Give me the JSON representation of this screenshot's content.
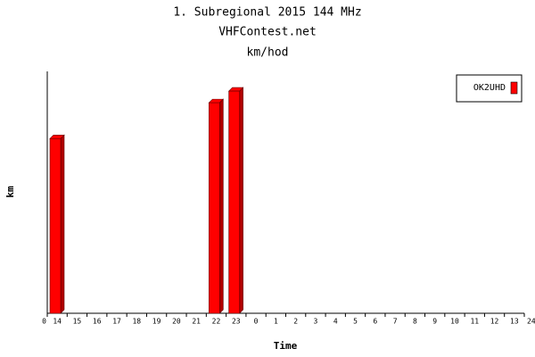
{
  "chart_data": {
    "type": "bar",
    "title": "1. Subregional 2015 144 MHz",
    "subtitle": "VHFContest.net",
    "unit_label": "km/hod",
    "x_label": "Time",
    "y_label": "km",
    "categories": [
      "14",
      "15",
      "16",
      "17",
      "18",
      "19",
      "20",
      "21",
      "22",
      "23",
      "0",
      "1",
      "2",
      "3",
      "4",
      "5",
      "6",
      "7",
      "8",
      "9",
      "10",
      "11",
      "12",
      "13"
    ],
    "xlim": [
      0,
      24
    ],
    "xticks": [
      0,
      24
    ],
    "ylim": [
      0,
      270
    ],
    "series": [
      {
        "name": "OK2UHD",
        "color": "#ff0000",
        "values": [
          195,
          0,
          0,
          0,
          0,
          0,
          0,
          0,
          235,
          248,
          0,
          0,
          0,
          0,
          0,
          0,
          0,
          0,
          0,
          0,
          0,
          0,
          0,
          0
        ]
      }
    ],
    "legend": "upper right"
  }
}
